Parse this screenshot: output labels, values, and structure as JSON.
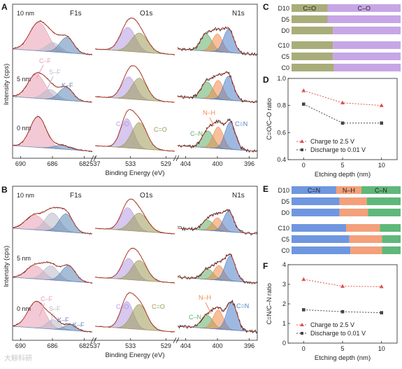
{
  "watermark": "大鲸科研",
  "colors": {
    "CF": "#e89cb0",
    "SF": "#b8b8c8",
    "KF": "#5b86b4",
    "CO_single": "#b59be0",
    "CO_double": "#9c9a55",
    "CN": "#5fae6a",
    "NH": "#f08a4b",
    "CNd": "#4f80c8",
    "envelope": "#c0392b",
    "raw": "#111111",
    "bar_CO_double": "#a9ad7a",
    "bar_CO_single": "#c7a6e6",
    "bar_CNs": "#6f97e0",
    "bar_NH": "#f4a07a",
    "bar_CNd": "#5fb87a",
    "charge": "#e05050",
    "discharge": "#444444"
  },
  "chart_data": [
    {
      "panel": "A",
      "type": "line",
      "subplots": [
        {
          "core": "F1s",
          "x_ticks": [
            "690",
            "686",
            "682"
          ],
          "xlim": [
            691,
            681
          ]
        },
        {
          "core": "O1s",
          "x_ticks": [
            "537",
            "533",
            "529"
          ],
          "xlim": [
            537,
            528
          ]
        },
        {
          "core": "N1s",
          "x_ticks": [
            "404",
            "400",
            "396"
          ],
          "xlim": [
            405,
            395
          ]
        }
      ],
      "depths": [
        "10 nm",
        "5 nm",
        "0 nm"
      ],
      "ylabel": "Intensity (cps)",
      "xlabel": "Binding Energy (eV)",
      "annotations": [
        "C–F",
        "S–F",
        "K–F",
        "C–O",
        "C=O",
        "N–H",
        "C–N",
        "C=N"
      ]
    },
    {
      "panel": "B",
      "type": "line",
      "subplots": [
        {
          "core": "F1s",
          "x_ticks": [
            "690",
            "686",
            "682"
          ],
          "xlim": [
            691,
            681
          ]
        },
        {
          "core": "O1s",
          "x_ticks": [
            "537",
            "533",
            "529"
          ],
          "xlim": [
            537,
            528
          ]
        },
        {
          "core": "N1s",
          "x_ticks": [
            "404",
            "400",
            "396"
          ],
          "xlim": [
            405,
            395
          ]
        }
      ],
      "depths": [
        "10 nm",
        "5 nm",
        "0 nm"
      ],
      "ylabel": "Intensity (cps)",
      "xlabel": "Binding Energy (eV)",
      "annotations": [
        "C–F",
        "S–F",
        "K–F",
        "K–F",
        "C–O",
        "C=O",
        "N–H",
        "C–N",
        "C=N"
      ]
    },
    {
      "panel": "C",
      "type": "bar",
      "orientation": "horizontal",
      "stacked": true,
      "categories": [
        "D10",
        "D5",
        "D0",
        "C10",
        "C5",
        "C0"
      ],
      "series": [
        {
          "name": "C=O",
          "values": [
            0.33,
            0.33,
            0.38,
            0.38,
            0.38,
            0.39
          ]
        },
        {
          "name": "C–O",
          "values": [
            0.67,
            0.67,
            0.62,
            0.62,
            0.62,
            0.61
          ]
        }
      ]
    },
    {
      "panel": "D",
      "type": "line",
      "x": [
        0,
        5,
        10
      ],
      "series": [
        {
          "name": "Charge to 2.5 V",
          "values": [
            0.91,
            0.82,
            0.8
          ]
        },
        {
          "name": "Discharge to 0.01 V",
          "values": [
            0.81,
            0.67,
            0.67
          ]
        }
      ],
      "x_ticks": [
        "0",
        "5",
        "10"
      ],
      "y_ticks": [
        "0.4",
        "0.6",
        "0.8",
        "1.0"
      ],
      "xlim": [
        -2,
        12
      ],
      "ylim": [
        0.4,
        1.0
      ],
      "xlabel": "Etching depth (nm)",
      "ylabel": "C=O/C–O ratio",
      "legend": "lower-right"
    },
    {
      "panel": "E",
      "type": "bar",
      "orientation": "horizontal",
      "stacked": true,
      "categories": [
        "D10",
        "D5",
        "D0",
        "C10",
        "C5",
        "C0"
      ],
      "series": [
        {
          "name": "C=N",
          "values": [
            0.41,
            0.44,
            0.44,
            0.5,
            0.53,
            0.54
          ]
        },
        {
          "name": "N–H",
          "values": [
            0.23,
            0.25,
            0.26,
            0.31,
            0.3,
            0.29
          ]
        },
        {
          "name": "C–N",
          "values": [
            0.36,
            0.31,
            0.3,
            0.19,
            0.17,
            0.17
          ]
        }
      ]
    },
    {
      "panel": "F",
      "type": "line",
      "x": [
        0,
        5,
        10
      ],
      "series": [
        {
          "name": "Charge to 2.5 V",
          "values": [
            3.25,
            2.9,
            2.88
          ]
        },
        {
          "name": "Discharge to 0.01 V",
          "values": [
            1.7,
            1.6,
            1.55
          ]
        }
      ],
      "x_ticks": [
        "0",
        "5",
        "10"
      ],
      "y_ticks": [
        "0",
        "1",
        "2",
        "3",
        "4"
      ],
      "xlim": [
        -2,
        12
      ],
      "ylim": [
        0,
        4
      ],
      "xlabel": "Etching depth (nm)",
      "ylabel": "C=N/C–N ratio",
      "legend": "lower-right"
    }
  ]
}
